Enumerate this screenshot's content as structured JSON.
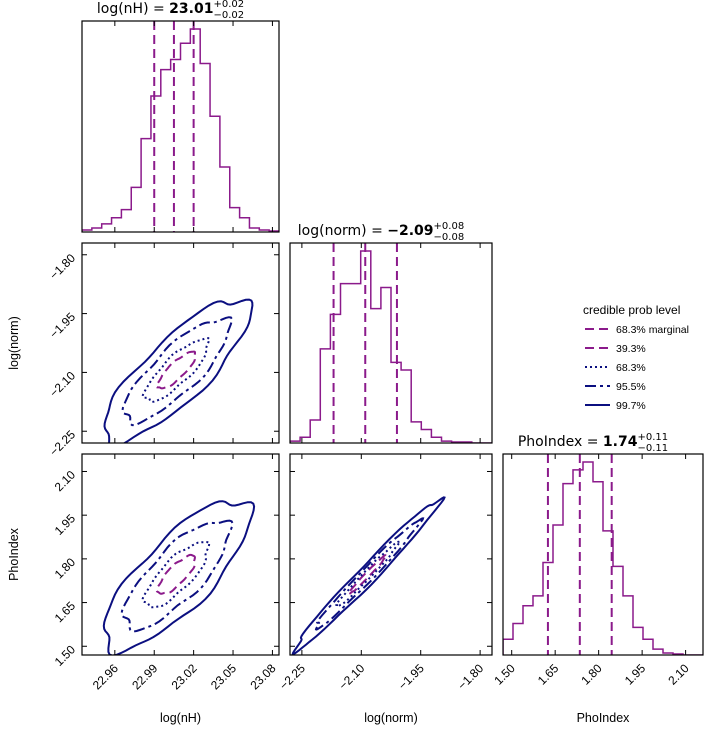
{
  "colors": {
    "marginal": "#8b1a8b",
    "contour_inner": "#8b1a8b",
    "contour_outer": "#0b0f80",
    "axis": "#000000"
  },
  "chart_data": {
    "type": "corner",
    "parameters": [
      {
        "key": "nH",
        "label": "log(nH)",
        "title_text": "log(nH) = ",
        "value": "23.01",
        "plus": "+0.02",
        "minus": "−0.02",
        "median": 23.005,
        "lo": 22.99,
        "hi": 23.02,
        "range": [
          22.935,
          23.085
        ],
        "ticks": [
          22.96,
          22.99,
          23.02,
          23.05,
          23.08
        ],
        "tick_labels": [
          "22.96",
          "22.99",
          "23.02",
          "23.05",
          "23.08"
        ],
        "hist": {
          "edges": [
            22.935,
            22.9425,
            22.95,
            22.9575,
            22.965,
            22.9725,
            22.98,
            22.9875,
            22.995,
            23.0025,
            23.01,
            23.0175,
            23.025,
            23.0325,
            23.04,
            23.0475,
            23.055,
            23.0625,
            23.07,
            23.0775,
            23.085
          ],
          "counts": [
            0.01,
            0.02,
            0.04,
            0.07,
            0.11,
            0.22,
            0.46,
            0.67,
            0.8,
            0.85,
            0.93,
            1.0,
            0.83,
            0.57,
            0.32,
            0.12,
            0.07,
            0.02,
            0.01,
            0.005
          ]
        }
      },
      {
        "key": "norm",
        "label": "log(norm)",
        "title_text": "log(norm) = ",
        "value": "−2.09",
        "plus": "+0.08",
        "minus": "−0.08",
        "median": -2.09,
        "lo": -2.17,
        "hi": -2.01,
        "range": [
          -2.28,
          -1.77
        ],
        "ticks": [
          -2.25,
          -2.1,
          -1.95,
          -1.8
        ],
        "tick_labels": [
          "−2.25",
          "−2.10",
          "−1.95",
          "−1.80"
        ],
        "hist": {
          "edges": [
            -2.28,
            -2.2545,
            -2.229,
            -2.2035,
            -2.178,
            -2.1525,
            -2.127,
            -2.1015,
            -2.076,
            -2.0505,
            -2.025,
            -1.9995,
            -1.974,
            -1.9485,
            -1.923,
            -1.8975,
            -1.872,
            -1.8465,
            -1.821,
            -1.7955,
            -1.77
          ],
          "counts": [
            0.01,
            0.03,
            0.12,
            0.49,
            0.67,
            0.83,
            0.83,
            1.0,
            0.7,
            0.81,
            0.42,
            0.38,
            0.11,
            0.07,
            0.03,
            0.01,
            0.005,
            0.005,
            0.0,
            0.0
          ]
        }
      },
      {
        "key": "PhoIndex",
        "label": "PhoIndex",
        "title_text": "PhoIndex = ",
        "value": "1.74",
        "plus": "+0.11",
        "minus": "−0.11",
        "median": 1.735,
        "lo": 1.625,
        "hi": 1.845,
        "range": [
          1.47,
          2.16
        ],
        "ticks": [
          1.5,
          1.65,
          1.8,
          1.95,
          2.1
        ],
        "tick_labels": [
          "1.50",
          "1.65",
          "1.80",
          "1.95",
          "2.10"
        ],
        "hist": {
          "edges": [
            1.47,
            1.5045,
            1.539,
            1.5735,
            1.608,
            1.6425,
            1.677,
            1.7115,
            1.746,
            1.7805,
            1.815,
            1.8495,
            1.884,
            1.9185,
            1.953,
            1.9875,
            2.022,
            2.0565,
            2.091,
            2.1255,
            2.16
          ],
          "counts": [
            0.08,
            0.16,
            0.25,
            0.3,
            0.47,
            0.66,
            0.87,
            0.94,
            0.98,
            0.88,
            0.63,
            0.45,
            0.3,
            0.14,
            0.08,
            0.03,
            0.01,
            0.005,
            0.0,
            0.0
          ]
        }
      }
    ],
    "contours": {
      "norm_vs_nH": {
        "cx": 23.007,
        "cy": -2.095,
        "rho": 0.82,
        "sx": 0.026,
        "sy": 0.085,
        "levels": [
          {
            "name": "39.3%",
            "scale": 0.55
          },
          {
            "name": "68.3%",
            "scale": 0.93
          },
          {
            "name": "95.5%",
            "scale": 1.55
          },
          {
            "name": "99.7%",
            "scale": 2.15
          }
        ]
      },
      "PhoIndex_vs_nH": {
        "cx": 23.007,
        "cy": 1.745,
        "rho": 0.78,
        "sx": 0.026,
        "sy": 0.12,
        "levels": [
          {
            "name": "39.3%",
            "scale": 0.55
          },
          {
            "name": "68.3%",
            "scale": 0.93
          },
          {
            "name": "95.5%",
            "scale": 1.55
          },
          {
            "name": "99.7%",
            "scale": 2.15
          }
        ]
      },
      "PhoIndex_vs_norm": {
        "cx": -2.085,
        "cy": 1.745,
        "rho": 0.985,
        "sx": 0.085,
        "sy": 0.12,
        "levels": [
          {
            "name": "39.3%",
            "scale": 0.55
          },
          {
            "name": "68.3%",
            "scale": 0.93
          },
          {
            "name": "95.5%",
            "scale": 1.55
          },
          {
            "name": "99.7%",
            "scale": 2.15
          }
        ]
      }
    },
    "legend": {
      "title": "credible prob level",
      "placement": "right",
      "entries": [
        {
          "label": "68.3% marginal",
          "style": "dashed",
          "color": "#8b1a8b"
        },
        {
          "label": "39.3%",
          "style": "dashed",
          "color": "#8b1a8b"
        },
        {
          "label": "68.3%",
          "style": "dotted",
          "color": "#0b0f80"
        },
        {
          "label": "95.5%",
          "style": "dashdot",
          "color": "#0b0f80"
        },
        {
          "label": "99.7%",
          "style": "solid",
          "color": "#0b0f80"
        }
      ]
    }
  }
}
